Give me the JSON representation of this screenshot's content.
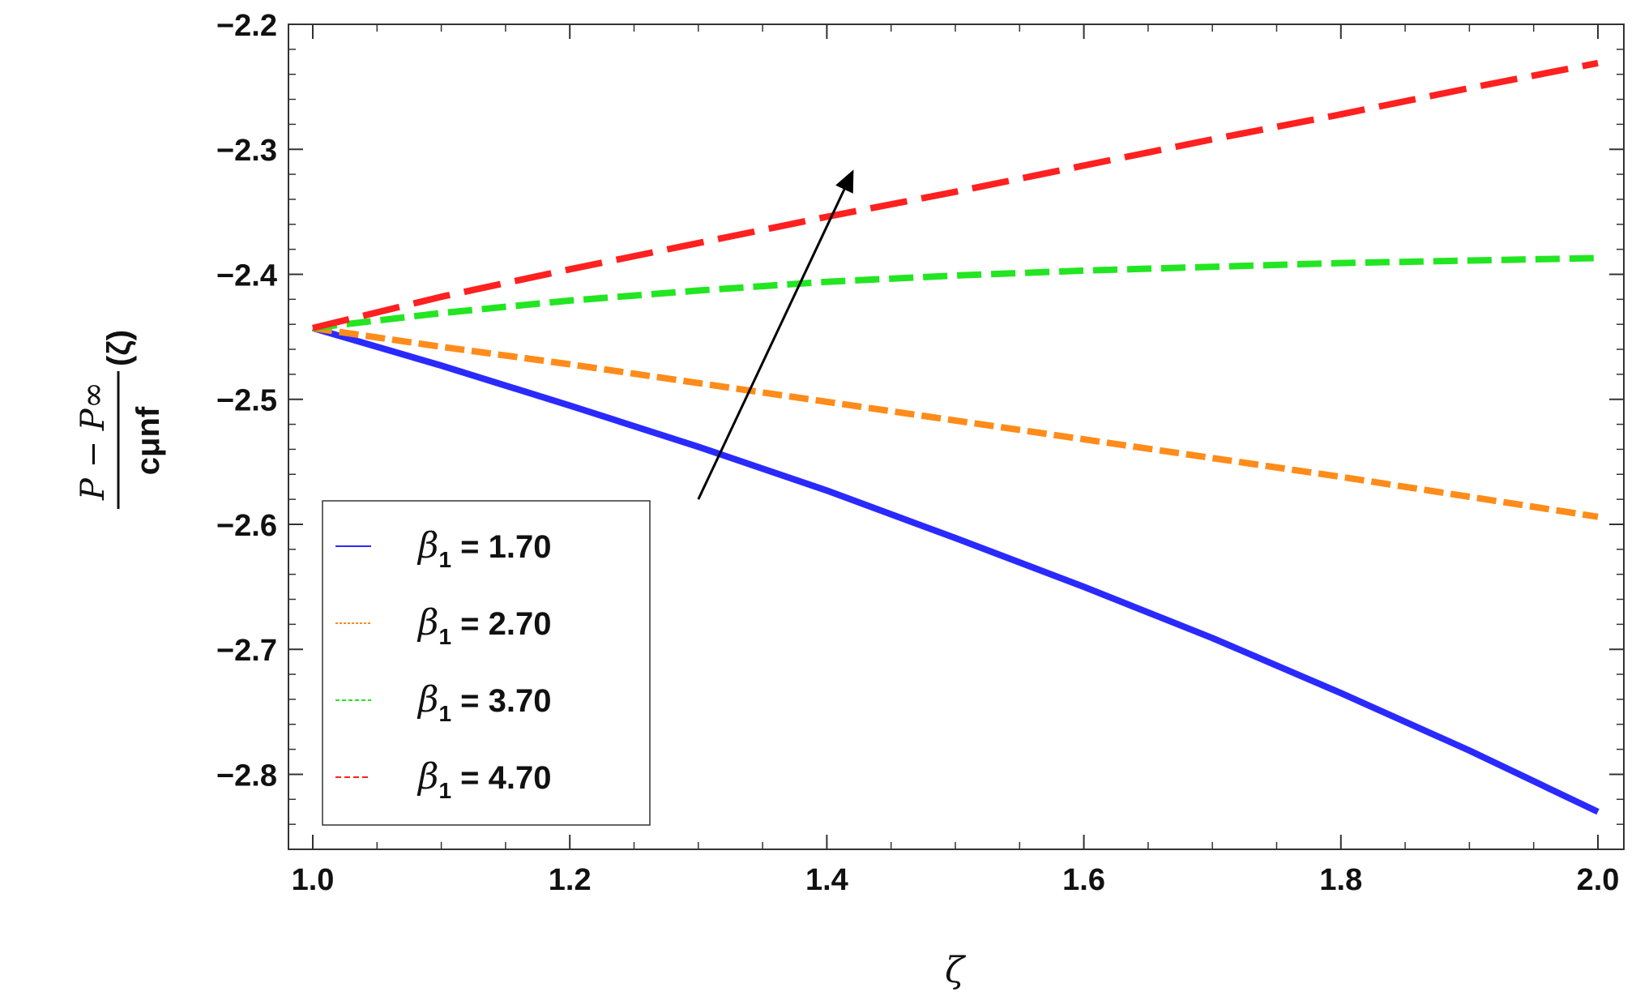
{
  "chart_data": {
    "type": "line",
    "xlabel": "ζ",
    "ylabel": {
      "numerator": "P − P∞",
      "denominator": "cμnf",
      "suffix": "(ζ)"
    },
    "xlim": [
      1.0,
      2.0
    ],
    "ylim": [
      -2.86,
      -2.2
    ],
    "x_ticks": [
      {
        "value": 1.0,
        "label": "1.0"
      },
      {
        "value": 1.2,
        "label": "1.2"
      },
      {
        "value": 1.4,
        "label": "1.4"
      },
      {
        "value": 1.6,
        "label": "1.6"
      },
      {
        "value": 1.8,
        "label": "1.8"
      },
      {
        "value": 2.0,
        "label": "2.0"
      }
    ],
    "y_ticks": [
      {
        "value": -2.2,
        "label": "−2.2"
      },
      {
        "value": -2.3,
        "label": "−2.3"
      },
      {
        "value": -2.4,
        "label": "−2.4"
      },
      {
        "value": -2.5,
        "label": "−2.5"
      },
      {
        "value": -2.6,
        "label": "−2.6"
      },
      {
        "value": -2.7,
        "label": "−2.7"
      },
      {
        "value": -2.8,
        "label": "−2.8"
      }
    ],
    "x": [
      1.0,
      1.1,
      1.2,
      1.3,
      1.4,
      1.5,
      1.6,
      1.7,
      1.8,
      1.9,
      2.0
    ],
    "series": [
      {
        "name": "β1 = 1.70",
        "sym": "β",
        "sub": "1",
        "value_text": " = 1.70",
        "color": "#2a2aff",
        "dash": "solid",
        "values": [
          -2.443,
          -2.473,
          -2.505,
          -2.538,
          -2.573,
          -2.611,
          -2.65,
          -2.691,
          -2.735,
          -2.781,
          -2.83
        ]
      },
      {
        "name": "β1 = 2.70",
        "sym": "β",
        "sub": "1",
        "value_text": " = 2.70",
        "color": "#ff8c1a",
        "dash": "short",
        "values": [
          -2.443,
          -2.458,
          -2.472,
          -2.487,
          -2.502,
          -2.517,
          -2.532,
          -2.547,
          -2.562,
          -2.578,
          -2.594
        ]
      },
      {
        "name": "β1 = 3.70",
        "sym": "β",
        "sub": "1",
        "value_text": " = 3.70",
        "color": "#22e622",
        "dash": "medium",
        "values": [
          -2.443,
          -2.431,
          -2.421,
          -2.413,
          -2.406,
          -2.401,
          -2.397,
          -2.394,
          -2.391,
          -2.389,
          -2.387
        ]
      },
      {
        "name": "β1 = 4.70",
        "sym": "β",
        "sub": "1",
        "value_text": " = 4.70",
        "color": "#ff2020",
        "dash": "long",
        "values": [
          -2.443,
          -2.418,
          -2.396,
          -2.375,
          -2.354,
          -2.334,
          -2.313,
          -2.292,
          -2.272,
          -2.251,
          -2.231
        ]
      }
    ],
    "annotation_arrow": {
      "from": [
        1.3,
        -2.58
      ],
      "to": [
        1.42,
        -2.318
      ]
    },
    "legend_position": "bottom-left",
    "grid": false
  }
}
